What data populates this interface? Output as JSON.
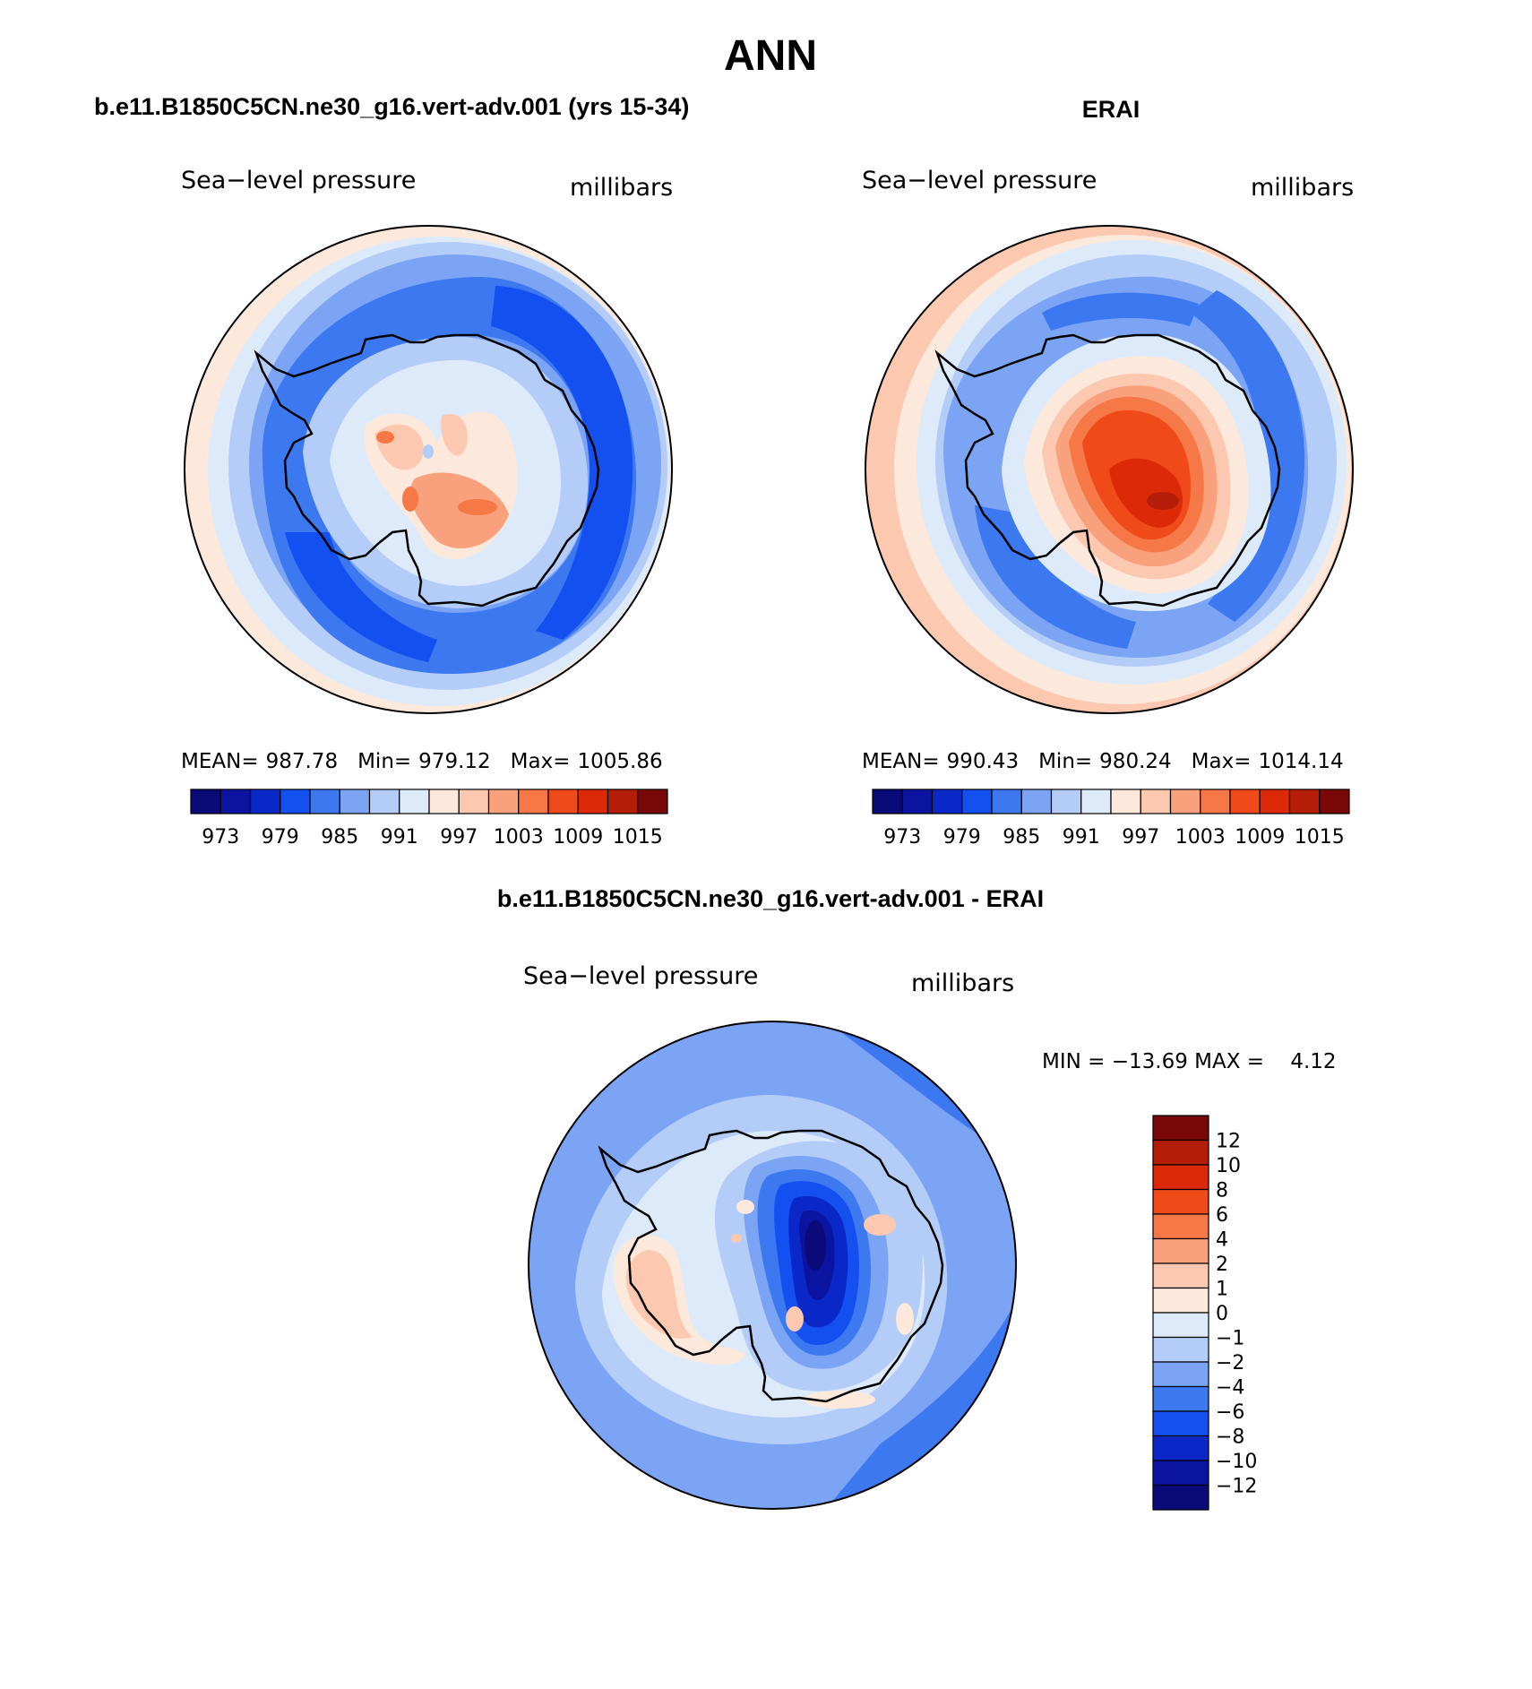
{
  "figure": {
    "season": "ANN"
  },
  "panels": [
    {
      "case_title": "b.e11.B1850C5CN.ne30_g16.vert-adv.001 (yrs 15-34)",
      "variable": "Sea−level pressure",
      "units": "millibars",
      "stats": {
        "mean_label": "MEAN=",
        "mean": "987.78",
        "min_label": "Min=",
        "min": "979.12",
        "max_label": "Max=",
        "max": "1005.86"
      }
    },
    {
      "case_title": "ERAI",
      "variable": "Sea−level pressure",
      "units": "millibars",
      "stats": {
        "mean_label": "MEAN=",
        "mean": "990.43",
        "min_label": "Min=",
        "min": "980.24",
        "max_label": "Max=",
        "max": "1014.14"
      }
    },
    {
      "case_title": "b.e11.B1850C5CN.ne30_g16.vert-adv.001 - ERAI",
      "variable": "Sea−level pressure",
      "units": "millibars",
      "stats": {
        "minmax": "MIN = −13.69 MAX =    4.12"
      }
    }
  ],
  "colorbars": {
    "absolute": {
      "colors": [
        "#0a0a78",
        "#0a14a0",
        "#0a28c8",
        "#1450f0",
        "#3c78f0",
        "#7ca4f4",
        "#b4ccf8",
        "#dceafa",
        "#fde8dc",
        "#fcc8b0",
        "#f9a07c",
        "#f57846",
        "#f04a1a",
        "#dc2a08",
        "#b41e08",
        "#7a0808"
      ],
      "tick_labels": [
        "973",
        "979",
        "985",
        "991",
        "997",
        "1003",
        "1009",
        "1015"
      ]
    },
    "difference": {
      "colors": [
        "#7a0808",
        "#b41e08",
        "#dc2a08",
        "#f04a1a",
        "#f57846",
        "#f9a07c",
        "#fcc8b0",
        "#fde8dc",
        "#dceafa",
        "#b4ccf8",
        "#7ca4f4",
        "#3c78f0",
        "#1450f0",
        "#0a28c8",
        "#0a14a0",
        "#0a0a78"
      ],
      "tick_labels": [
        "12",
        "10",
        "8",
        "6",
        "4",
        "2",
        "1",
        "0",
        "−1",
        "−2",
        "−4",
        "−6",
        "−8",
        "−10",
        "−12"
      ]
    }
  }
}
